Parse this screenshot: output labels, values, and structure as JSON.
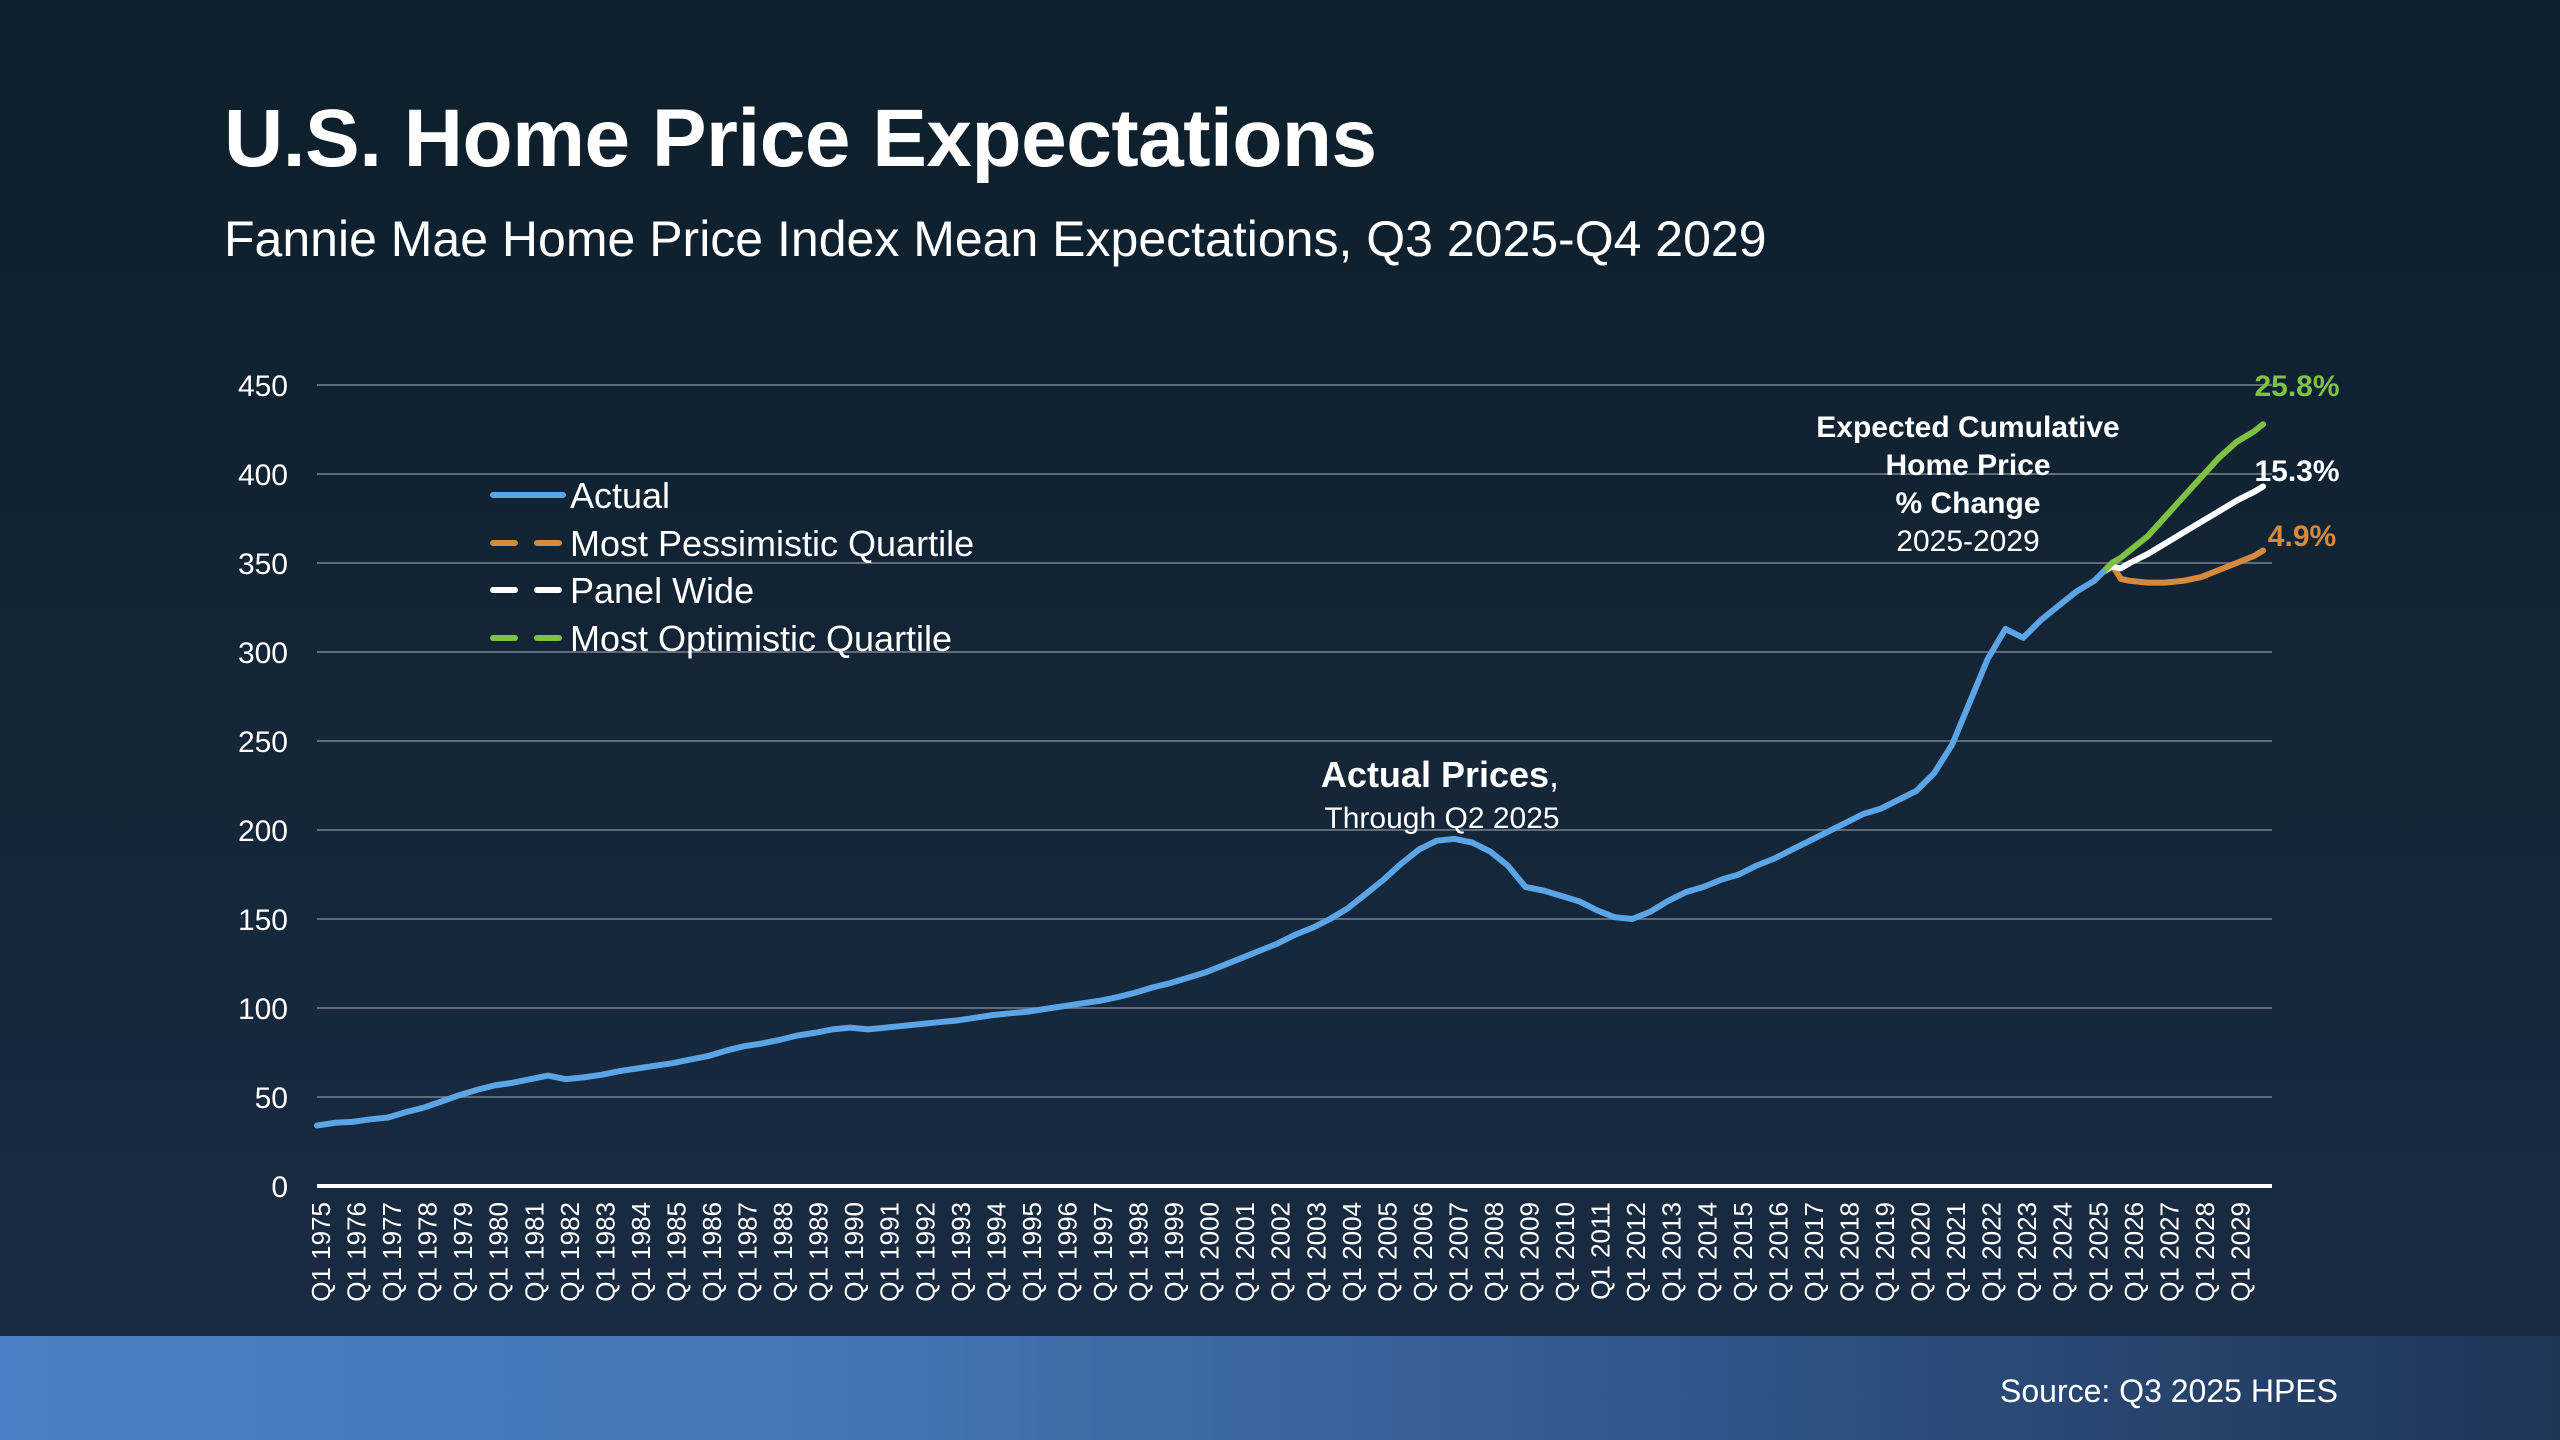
{
  "header": {
    "title": "U.S. Home Price Expectations",
    "subtitle": "Fannie Mae Home Price Index Mean Expectations, Q3 2025-Q4 2029"
  },
  "footer": {
    "source": "Source: Q3 2025 HPES"
  },
  "colors": {
    "actual": "#5ba4e6",
    "pessimistic": "#d4893f",
    "panel": "#ffffff",
    "optimistic": "#7dc242",
    "grid": "#5f6b78",
    "axis": "#ffffff"
  },
  "chart_data": {
    "type": "line",
    "title": "U.S. Home Price Expectations",
    "subtitle": "Fannie Mae Home Price Index Mean Expectations, Q3 2025-Q4 2029",
    "xlabel": "",
    "ylabel": "",
    "x_range": [
      1975.0,
      2029.75
    ],
    "ylim": [
      0,
      450
    ],
    "yticks": [
      0,
      50,
      100,
      150,
      200,
      250,
      300,
      350,
      400,
      450
    ],
    "xtick_labels": [
      "Q1 1975",
      "Q1 1976",
      "Q1 1977",
      "Q1 1978",
      "Q1 1979",
      "Q1 1980",
      "Q1 1981",
      "Q1 1982",
      "Q1 1983",
      "Q1 1984",
      "Q1 1985",
      "Q1 1986",
      "Q1 1987",
      "Q1 1988",
      "Q1 1989",
      "Q1 1990",
      "Q1 1991",
      "Q1 1992",
      "Q1 1993",
      "Q1 1994",
      "Q1 1995",
      "Q1 1996",
      "Q1 1997",
      "Q1 1998",
      "Q1 1999",
      "Q1 2000",
      "Q1 2001",
      "Q1 2002",
      "Q1 2003",
      "Q1 2004",
      "Q1 2005",
      "Q1 2006",
      "Q1 2007",
      "Q1 2008",
      "Q1 2009",
      "Q1 2010",
      "Q1 2011",
      "Q1 2012",
      "Q1 2013",
      "Q1 2014",
      "Q1 2015",
      "Q1 2016",
      "Q1 2017",
      "Q1 2018",
      "Q1 2019",
      "Q1 2020",
      "Q1 2021",
      "Q1 2022",
      "Q1 2023",
      "Q1 2024",
      "Q1 2025",
      "Q1 2026",
      "Q1 2027",
      "Q1 2028",
      "Q1 2029"
    ],
    "grid": true,
    "legend_position": "upper-left",
    "legend": [
      {
        "label": "Actual",
        "key": "actual",
        "style": "solid"
      },
      {
        "label": "Most Pessimistic Quartile",
        "key": "pessimistic",
        "style": "dashed"
      },
      {
        "label": "Panel Wide",
        "key": "panel",
        "style": "dashed"
      },
      {
        "label": "Most Optimistic Quartile",
        "key": "optimistic",
        "style": "dashed"
      }
    ],
    "series": [
      {
        "name": "Actual",
        "key": "actual",
        "points": [
          [
            1975.0,
            34
          ],
          [
            1975.5,
            35.5
          ],
          [
            1976.0,
            36
          ],
          [
            1976.5,
            37.5
          ],
          [
            1977.0,
            38.5
          ],
          [
            1977.5,
            41.5
          ],
          [
            1978.0,
            44
          ],
          [
            1978.5,
            47.5
          ],
          [
            1979.0,
            51
          ],
          [
            1979.5,
            54
          ],
          [
            1980.0,
            56.5
          ],
          [
            1980.5,
            58
          ],
          [
            1981.0,
            60
          ],
          [
            1981.5,
            62
          ],
          [
            1982.0,
            60
          ],
          [
            1982.5,
            61
          ],
          [
            1983.0,
            62.5
          ],
          [
            1983.5,
            64.5
          ],
          [
            1984.0,
            66
          ],
          [
            1984.5,
            67.5
          ],
          [
            1985.0,
            69
          ],
          [
            1985.5,
            71
          ],
          [
            1986.0,
            73
          ],
          [
            1986.5,
            76
          ],
          [
            1987.0,
            78.5
          ],
          [
            1987.5,
            80
          ],
          [
            1988.0,
            82
          ],
          [
            1988.5,
            84.5
          ],
          [
            1989.0,
            86
          ],
          [
            1989.5,
            88
          ],
          [
            1990.0,
            89
          ],
          [
            1990.5,
            88
          ],
          [
            1991.0,
            89
          ],
          [
            1991.5,
            90
          ],
          [
            1992.0,
            91
          ],
          [
            1992.5,
            92
          ],
          [
            1993.0,
            93
          ],
          [
            1993.5,
            94.5
          ],
          [
            1994.0,
            96
          ],
          [
            1994.5,
            97
          ],
          [
            1995.0,
            98
          ],
          [
            1995.5,
            99.5
          ],
          [
            1996.0,
            101
          ],
          [
            1996.5,
            102.5
          ],
          [
            1997.0,
            104
          ],
          [
            1997.5,
            106
          ],
          [
            1998.0,
            108.5
          ],
          [
            1998.5,
            111.5
          ],
          [
            1999.0,
            114
          ],
          [
            1999.5,
            117
          ],
          [
            2000.0,
            120
          ],
          [
            2000.5,
            124
          ],
          [
            2001.0,
            128
          ],
          [
            2001.5,
            132
          ],
          [
            2002.0,
            136
          ],
          [
            2002.5,
            141
          ],
          [
            2003.0,
            145
          ],
          [
            2003.5,
            150
          ],
          [
            2004.0,
            156
          ],
          [
            2004.5,
            164
          ],
          [
            2005.0,
            172
          ],
          [
            2005.5,
            181
          ],
          [
            2006.0,
            189
          ],
          [
            2006.5,
            194
          ],
          [
            2007.0,
            195
          ],
          [
            2007.5,
            193
          ],
          [
            2008.0,
            188
          ],
          [
            2008.5,
            180
          ],
          [
            2009.0,
            168
          ],
          [
            2009.5,
            166
          ],
          [
            2010.0,
            163
          ],
          [
            2010.5,
            160
          ],
          [
            2011.0,
            155
          ],
          [
            2011.5,
            151
          ],
          [
            2012.0,
            150
          ],
          [
            2012.5,
            154
          ],
          [
            2013.0,
            160
          ],
          [
            2013.5,
            165
          ],
          [
            2014.0,
            168
          ],
          [
            2014.5,
            172
          ],
          [
            2015.0,
            175
          ],
          [
            2015.5,
            180
          ],
          [
            2016.0,
            184
          ],
          [
            2016.5,
            189
          ],
          [
            2017.0,
            194
          ],
          [
            2017.5,
            199
          ],
          [
            2018.0,
            204
          ],
          [
            2018.5,
            209
          ],
          [
            2019.0,
            212
          ],
          [
            2019.5,
            217
          ],
          [
            2020.0,
            222
          ],
          [
            2020.5,
            232
          ],
          [
            2021.0,
            248
          ],
          [
            2021.5,
            272
          ],
          [
            2022.0,
            296
          ],
          [
            2022.5,
            313
          ],
          [
            2023.0,
            308
          ],
          [
            2023.5,
            318
          ],
          [
            2024.0,
            326
          ],
          [
            2024.5,
            334
          ],
          [
            2025.0,
            340
          ],
          [
            2025.25,
            345
          ]
        ]
      },
      {
        "name": "Most Pessimistic Quartile",
        "key": "pessimistic",
        "points": [
          [
            2025.25,
            345
          ],
          [
            2025.5,
            349
          ],
          [
            2025.75,
            341
          ],
          [
            2026.0,
            340
          ],
          [
            2026.5,
            339
          ],
          [
            2027.0,
            339
          ],
          [
            2027.5,
            340
          ],
          [
            2028.0,
            342
          ],
          [
            2028.5,
            346
          ],
          [
            2029.0,
            350
          ],
          [
            2029.5,
            354
          ],
          [
            2029.75,
            357
          ]
        ]
      },
      {
        "name": "Panel Wide",
        "key": "panel",
        "points": [
          [
            2025.25,
            345
          ],
          [
            2025.5,
            348
          ],
          [
            2025.75,
            347
          ],
          [
            2026.0,
            350
          ],
          [
            2026.5,
            355
          ],
          [
            2027.0,
            361
          ],
          [
            2027.5,
            367
          ],
          [
            2028.0,
            373
          ],
          [
            2028.5,
            379
          ],
          [
            2029.0,
            385
          ],
          [
            2029.5,
            390
          ],
          [
            2029.75,
            393
          ]
        ]
      },
      {
        "name": "Most Optimistic Quartile",
        "key": "optimistic",
        "points": [
          [
            2025.25,
            345
          ],
          [
            2025.5,
            350
          ],
          [
            2025.75,
            353
          ],
          [
            2026.0,
            357
          ],
          [
            2026.5,
            365
          ],
          [
            2027.0,
            376
          ],
          [
            2027.5,
            387
          ],
          [
            2028.0,
            398
          ],
          [
            2028.5,
            409
          ],
          [
            2029.0,
            418
          ],
          [
            2029.5,
            424
          ],
          [
            2029.75,
            428
          ]
        ]
      }
    ],
    "annotations": {
      "actual_prices_title": "Actual Prices",
      "actual_prices_comma": ",",
      "actual_prices_sub": "Through Q2 2025",
      "expected_line1": "Expected Cumulative",
      "expected_line2": "Home Price",
      "expected_line3": "% Change",
      "expected_line4": "2025-2029",
      "optimistic_pct": "25.8%",
      "panel_pct": "15.3%",
      "pessimistic_pct": "4.9%"
    }
  }
}
